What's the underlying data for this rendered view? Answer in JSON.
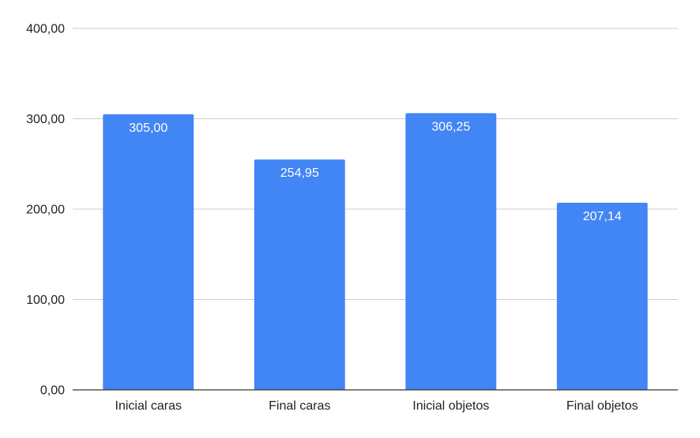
{
  "chart_data": {
    "type": "bar",
    "title": "",
    "xlabel": "",
    "ylabel": "",
    "categories": [
      "Inicial caras",
      "Final caras",
      "Inicial objetos",
      "Final objetos"
    ],
    "values": [
      305.0,
      254.95,
      306.25,
      207.14
    ],
    "value_labels": [
      "305,00",
      "254,95",
      "306,25",
      "207,14"
    ],
    "ylim": [
      0,
      400
    ],
    "yticks": [
      0,
      100,
      200,
      300,
      400
    ],
    "ytick_labels": [
      "0,00",
      "100,00",
      "200,00",
      "300,00",
      "400,00"
    ],
    "grid": true,
    "legend": "none",
    "bar_color": "#4285f4",
    "grid_color": "#cccccc",
    "axis_color": "#333333"
  }
}
